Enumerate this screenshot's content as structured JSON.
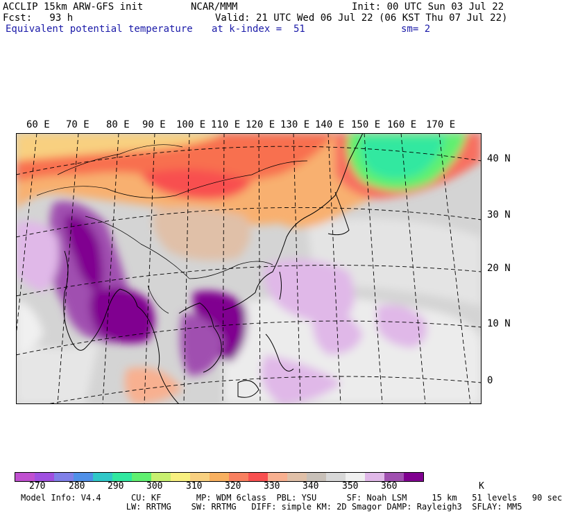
{
  "header": {
    "line1_left": "ACCLIP 15km ARW-GFS init",
    "line1_mid": "NCAR/MMM",
    "line1_right": "Init: 00 UTC Sun 03 Jul 22",
    "line2_left": "Fcst:   93 h",
    "line2_right": "Valid: 21 UTC Wed 06 Jul 22 (06 KST Thu 07 Jul 22)",
    "line3_field": "Equivalent potential temperature",
    "line3_level": "at k-index =  51",
    "line3_smooth": "sm= 2"
  },
  "map": {
    "lon_labels": [
      "60 E",
      "70 E",
      "80 E",
      "90 E",
      "100 E",
      "110 E",
      "120 E",
      "130 E",
      "140 E",
      "150 E",
      "160 E",
      "170 E"
    ],
    "lat_labels": [
      "40 N",
      "30 N",
      "20 N",
      "10 N",
      "0"
    ]
  },
  "colorbar": {
    "colors": [
      "#c050d0",
      "#a050e0",
      "#8080e8",
      "#5090e8",
      "#30c8c8",
      "#30e8a0",
      "#60f070",
      "#c8f070",
      "#f8f080",
      "#f8d080",
      "#f8b060",
      "#f88060",
      "#f85050",
      "#f8b090",
      "#e0c0a8",
      "#c8c0b8",
      "#d8d8d8",
      "#f0f0f0",
      "#e0b8e8",
      "#a050b0",
      "#800090"
    ],
    "ticks": [
      "270",
      "280",
      "290",
      "300",
      "310",
      "320",
      "330",
      "340",
      "350",
      "360"
    ],
    "unit": "K"
  },
  "footer": {
    "line1": "Model Info: V4.4      CU: KF       MP: WDM 6class  PBL: YSU      SF: Noah LSM     15 km   51 levels   90 sec",
    "line2": "                     LW: RRTMG    SW: RRTMG   DIFF: simple KM: 2D Smagor DAMP: Rayleigh3  SFLAY: MM5"
  }
}
